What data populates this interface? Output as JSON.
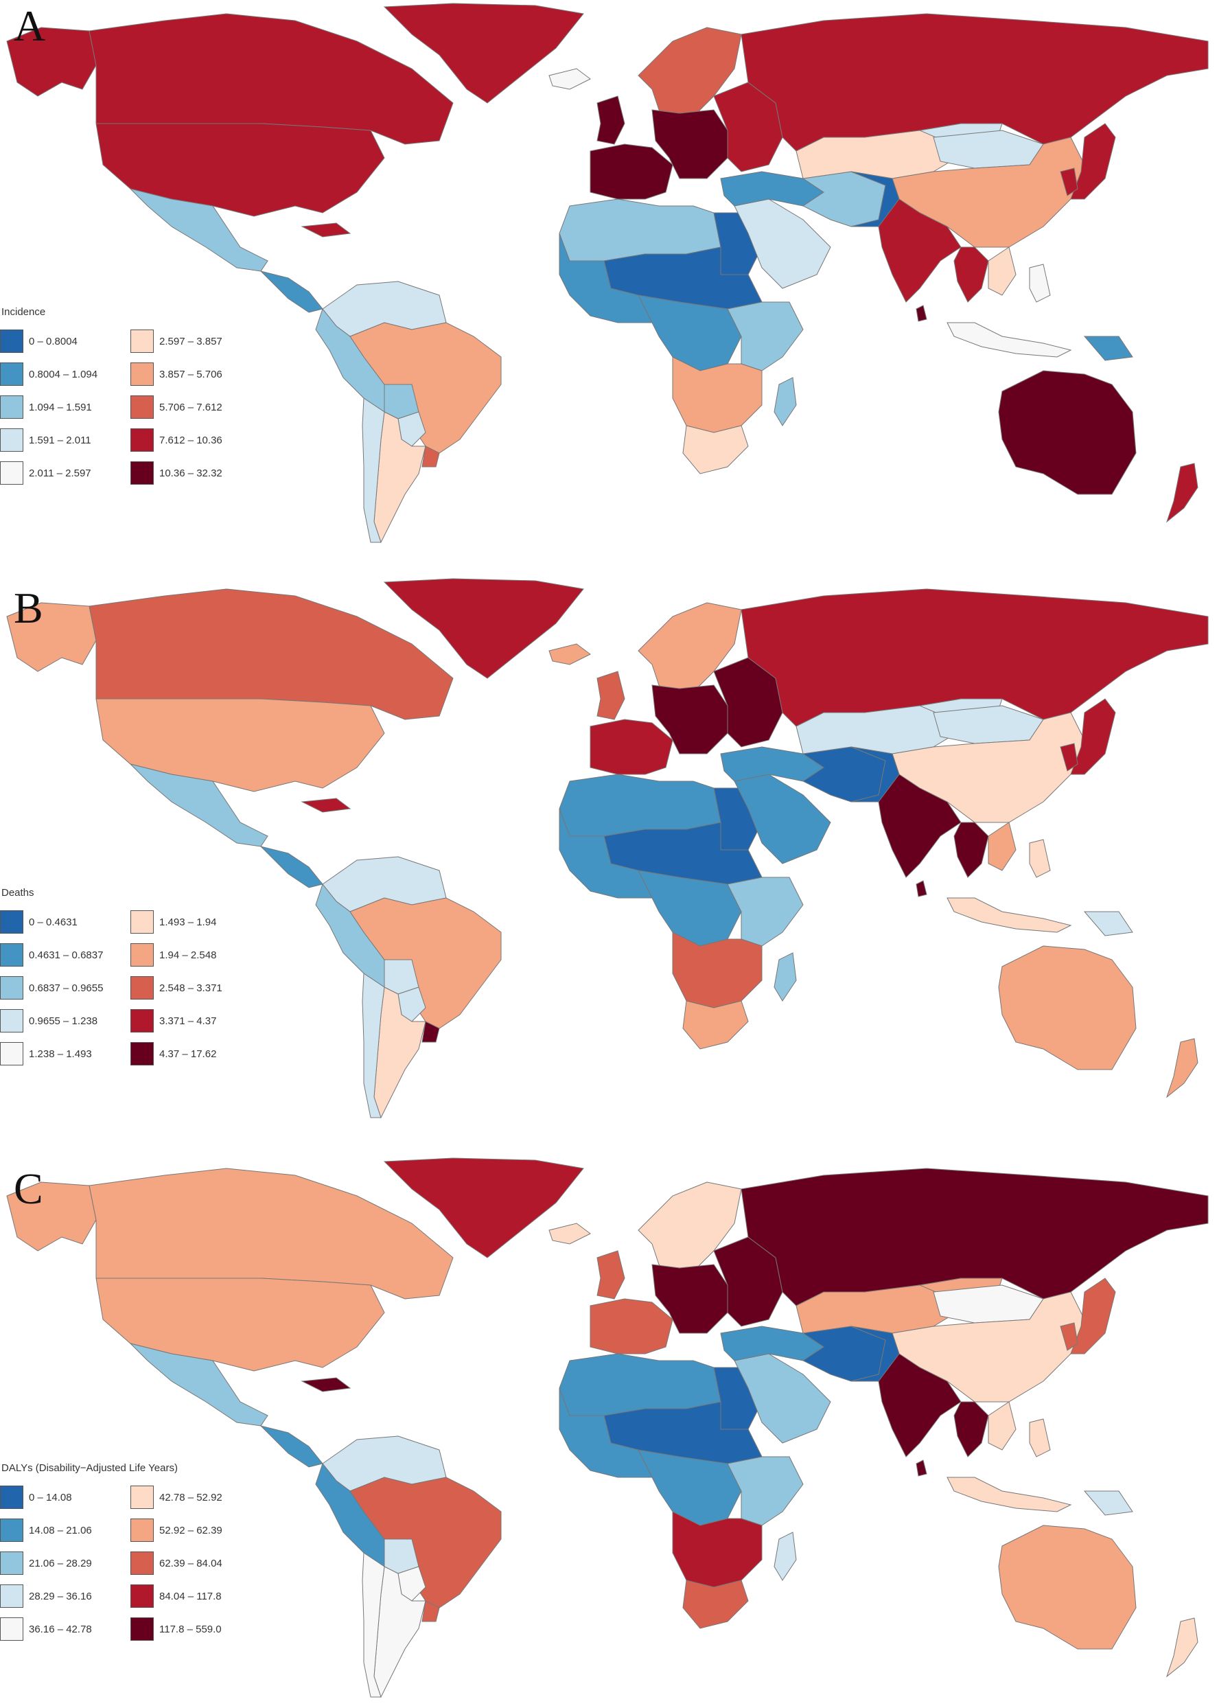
{
  "panels": [
    {
      "label": "A",
      "legend_title": "Incidence",
      "legend": [
        {
          "range": "0 – 0.8004",
          "color": "#2166ac"
        },
        {
          "range": "0.8004 – 1.094",
          "color": "#4393c3"
        },
        {
          "range": "1.094 – 1.591",
          "color": "#92c5de"
        },
        {
          "range": "1.591 – 2.011",
          "color": "#d1e5f0"
        },
        {
          "range": "2.011 – 2.597",
          "color": "#f7f7f7"
        },
        {
          "range": "2.597 – 3.857",
          "color": "#fddbc7"
        },
        {
          "range": "3.857 – 5.706",
          "color": "#f4a582"
        },
        {
          "range": "5.706 – 7.612",
          "color": "#d6604d"
        },
        {
          "range": "7.612 – 10.36",
          "color": "#b2182b"
        },
        {
          "range": "10.36 – 32.32",
          "color": "#67001f"
        }
      ]
    },
    {
      "label": "B",
      "legend_title": "Deaths",
      "legend": [
        {
          "range": "0 – 0.4631",
          "color": "#2166ac"
        },
        {
          "range": "0.4631 – 0.6837",
          "color": "#4393c3"
        },
        {
          "range": "0.6837 – 0.9655",
          "color": "#92c5de"
        },
        {
          "range": "0.9655 – 1.238",
          "color": "#d1e5f0"
        },
        {
          "range": "1.238 – 1.493",
          "color": "#f7f7f7"
        },
        {
          "range": "1.493 – 1.94",
          "color": "#fddbc7"
        },
        {
          "range": "1.94 – 2.548",
          "color": "#f4a582"
        },
        {
          "range": "2.548 – 3.371",
          "color": "#d6604d"
        },
        {
          "range": "3.371 – 4.37",
          "color": "#b2182b"
        },
        {
          "range": "4.37 – 17.62",
          "color": "#67001f"
        }
      ]
    },
    {
      "label": "C",
      "legend_title": "DALYs (Disability−Adjusted Life Years)",
      "legend": [
        {
          "range": "0 – 14.08",
          "color": "#2166ac"
        },
        {
          "range": "14.08 – 21.06",
          "color": "#4393c3"
        },
        {
          "range": "21.06 – 28.29",
          "color": "#92c5de"
        },
        {
          "range": "28.29 – 36.16",
          "color": "#d1e5f0"
        },
        {
          "range": "36.16 – 42.78",
          "color": "#f7f7f7"
        },
        {
          "range": "42.78 – 52.92",
          "color": "#fddbc7"
        },
        {
          "range": "52.92 – 62.39",
          "color": "#f4a582"
        },
        {
          "range": "62.39 – 84.04",
          "color": "#d6604d"
        },
        {
          "range": "84.04 – 117.8",
          "color": "#b2182b"
        },
        {
          "range": "117.8 – 559.0",
          "color": "#67001f"
        }
      ]
    }
  ],
  "map_regions": {
    "A": {
      "alaska": 8,
      "canada": 8,
      "usa": 8,
      "greenland": 8,
      "mexico": 2,
      "central_america": 1,
      "caribbean": 8,
      "colombia_venezuela": 3,
      "ecuador_peru": 2,
      "brazil": 6,
      "bolivia": 2,
      "paraguay": 3,
      "argentina": 5,
      "chile": 3,
      "uruguay": 7,
      "iceland": 4,
      "scandinavia": 7,
      "uk": 9,
      "western_europe": 9,
      "central_europe": 9,
      "eastern_europe": 8,
      "russia": 8,
      "north_africa": 2,
      "egypt": 0,
      "sahel": 0,
      "west_africa": 1,
      "central_africa": 1,
      "east_africa": 2,
      "southern_africa": 6,
      "south_africa": 5,
      "madagascar": 2,
      "arabia": 3,
      "middle_east": 1,
      "iran": 2,
      "central_asia": 5,
      "kazakhstan_east": 3,
      "mongolia": 3,
      "china": 6,
      "pakistan_afghan": 0,
      "india": 8,
      "sri_lanka": 9,
      "southeast_asia": 8,
      "indochina": 5,
      "indonesia": 4,
      "philippines": 4,
      "japan": 8,
      "korea": 8,
      "png": 1,
      "australia": 9,
      "new_zealand": 8
    },
    "B": {
      "alaska": 6,
      "canada": 7,
      "usa": 6,
      "greenland": 8,
      "mexico": 2,
      "central_america": 1,
      "caribbean": 8,
      "colombia_venezuela": 3,
      "ecuador_peru": 2,
      "brazil": 6,
      "bolivia": 3,
      "paraguay": 3,
      "argentina": 5,
      "chile": 3,
      "uruguay": 9,
      "iceland": 6,
      "scandinavia": 6,
      "uk": 7,
      "western_europe": 8,
      "central_europe": 9,
      "eastern_europe": 9,
      "russia": 8,
      "north_africa": 1,
      "egypt": 0,
      "sahel": 0,
      "west_africa": 1,
      "central_africa": 1,
      "east_africa": 2,
      "southern_africa": 7,
      "south_africa": 6,
      "madagascar": 2,
      "arabia": 1,
      "middle_east": 1,
      "iran": 0,
      "central_asia": 3,
      "kazakhstan_east": 3,
      "mongolia": 3,
      "china": 5,
      "pakistan_afghan": 0,
      "india": 9,
      "sri_lanka": 9,
      "southeast_asia": 9,
      "indochina": 6,
      "indonesia": 5,
      "philippines": 5,
      "japan": 8,
      "korea": 8,
      "png": 3,
      "australia": 6,
      "new_zealand": 6
    },
    "C": {
      "alaska": 6,
      "canada": 6,
      "usa": 6,
      "greenland": 8,
      "mexico": 2,
      "central_america": 1,
      "caribbean": 9,
      "colombia_venezuela": 3,
      "ecuador_peru": 1,
      "brazil": 7,
      "bolivia": 3,
      "paraguay": 4,
      "argentina": 4,
      "chile": 4,
      "uruguay": 7,
      "iceland": 5,
      "scandinavia": 5,
      "uk": 7,
      "western_europe": 7,
      "central_europe": 9,
      "eastern_europe": 9,
      "russia": 9,
      "north_africa": 1,
      "egypt": 0,
      "sahel": 0,
      "west_africa": 1,
      "central_africa": 1,
      "east_africa": 2,
      "southern_africa": 8,
      "south_africa": 7,
      "madagascar": 3,
      "arabia": 2,
      "middle_east": 1,
      "iran": 0,
      "central_asia": 6,
      "kazakhstan_east": 6,
      "mongolia": 4,
      "china": 5,
      "pakistan_afghan": 0,
      "india": 9,
      "sri_lanka": 9,
      "southeast_asia": 9,
      "indochina": 5,
      "indonesia": 5,
      "philippines": 5,
      "japan": 7,
      "korea": 7,
      "png": 3,
      "australia": 6,
      "new_zealand": 5
    }
  }
}
